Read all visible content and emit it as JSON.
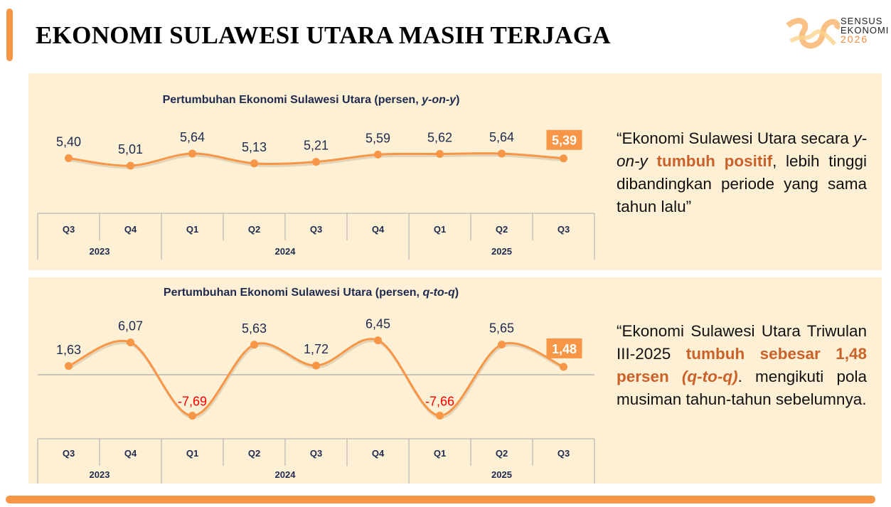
{
  "title": "EKONOMI SULAWESI UTARA MASIH TERJAGA",
  "logo": {
    "line1": "SENSUS",
    "line2": "EKONOMI",
    "line3": "2026"
  },
  "colors": {
    "accent": "#f79646",
    "panel": "#fef0d5",
    "negative": "#ff0000",
    "title_text": "#1f2a4f",
    "highlight_text": "#c9622a"
  },
  "chart_data": [
    {
      "type": "line",
      "title_main": "Pertumbuhan Ekonomi Sulawesi Utara (persen, ",
      "title_italic": "y-on-y",
      "title_end": ")",
      "categories": [
        "Q3",
        "Q4",
        "Q1",
        "Q2",
        "Q3",
        "Q4",
        "Q1",
        "Q2",
        "Q3"
      ],
      "years": [
        {
          "label": "2023",
          "span": 2
        },
        {
          "label": "2024",
          "span": 4
        },
        {
          "label": "2025",
          "span": 3
        }
      ],
      "values": [
        5.4,
        5.01,
        5.64,
        5.13,
        5.21,
        5.59,
        5.62,
        5.64,
        5.39
      ],
      "labels": [
        "5,40",
        "5,01",
        "5,64",
        "5,13",
        "5,21",
        "5,59",
        "5,62",
        "5,64",
        "5,39"
      ],
      "highlight_last": true,
      "smooth": true
    },
    {
      "type": "line",
      "title_main": "Pertumbuhan Ekonomi Sulawesi Utara (persen, ",
      "title_italic": "q-to-q",
      "title_end": ")",
      "categories": [
        "Q3",
        "Q4",
        "Q1",
        "Q2",
        "Q3",
        "Q4",
        "Q1",
        "Q2",
        "Q3"
      ],
      "years": [
        {
          "label": "2023",
          "span": 2
        },
        {
          "label": "2024",
          "span": 4
        },
        {
          "label": "2025",
          "span": 3
        }
      ],
      "values": [
        1.63,
        6.07,
        -7.69,
        5.63,
        1.72,
        6.45,
        -7.66,
        5.65,
        1.48
      ],
      "labels": [
        "1,63",
        "6,07",
        "-7,69",
        "5,63",
        "1,72",
        "6,45",
        "-7,66",
        "5,65",
        "1,48"
      ],
      "highlight_last": true,
      "smooth": true,
      "zero_line": true
    }
  ],
  "quote1": {
    "a": "“Ekonomi Sulawesi Utara secara ",
    "b": "y-on-y",
    "c": " ",
    "d": "tumbuh positif",
    "e": ", lebih tinggi dibandingkan periode yang sama tahun lalu”"
  },
  "quote2": {
    "a": "“Ekonomi Sulawesi Utara Triwulan III-2025 ",
    "b": "tumbuh sebesar 1,48 persen ",
    "c": "(q-to-q)",
    "d": ". mengikuti pola musiman tahun-tahun sebelumnya."
  }
}
